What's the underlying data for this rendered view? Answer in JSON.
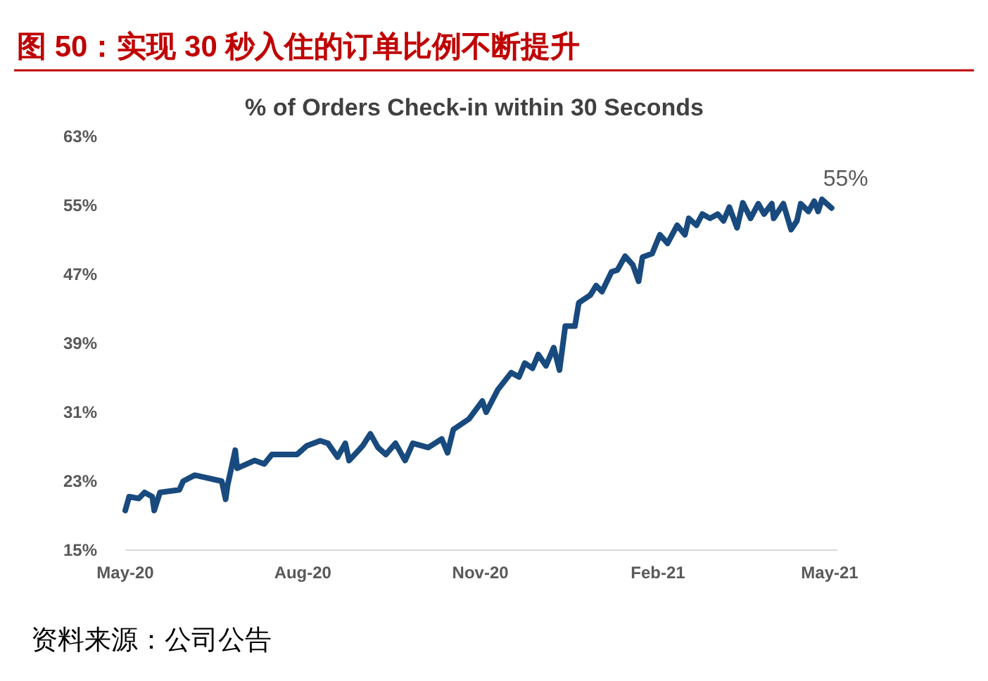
{
  "chart_data": {
    "type": "line",
    "title": "图 50：实现 30 秒入住的订单比例不断提升",
    "subtitle": "% of Orders Check-in within 30 Seconds",
    "x": [
      "2020-05-01",
      "2020-05-03",
      "2020-05-08",
      "2020-05-11",
      "2020-05-15",
      "2020-05-16",
      "2020-05-19",
      "2020-05-29",
      "2020-05-31",
      "2020-06-06",
      "2020-06-20",
      "2020-06-22",
      "2020-06-23",
      "2020-06-27",
      "2020-06-28",
      "2020-07-07",
      "2020-07-12",
      "2020-07-16",
      "2020-07-29",
      "2020-08-03",
      "2020-08-10",
      "2020-08-14",
      "2020-08-19",
      "2020-08-23",
      "2020-08-25",
      "2020-09-01",
      "2020-09-05",
      "2020-09-09",
      "2020-09-13",
      "2020-09-18",
      "2020-09-23",
      "2020-09-27",
      "2020-10-05",
      "2020-10-12",
      "2020-10-15",
      "2020-10-18",
      "2020-10-26",
      "2020-11-02",
      "2020-11-04",
      "2020-11-10",
      "2020-11-17",
      "2020-11-21",
      "2020-11-24",
      "2020-11-28",
      "2020-12-01",
      "2020-12-05",
      "2020-12-09",
      "2020-12-12",
      "2020-12-15",
      "2020-12-20",
      "2020-12-22",
      "2020-12-28",
      "2020-12-31",
      "2021-01-03",
      "2021-01-08",
      "2021-01-11",
      "2021-01-15",
      "2021-01-19",
      "2021-01-22",
      "2021-01-24",
      "2021-01-29",
      "2021-02-02",
      "2021-02-06",
      "2021-02-11",
      "2021-02-15",
      "2021-02-17",
      "2021-02-21",
      "2021-02-24",
      "2021-02-28",
      "2021-03-04",
      "2021-03-07",
      "2021-03-10",
      "2021-03-14",
      "2021-03-17",
      "2021-03-21",
      "2021-03-25",
      "2021-03-28",
      "2021-04-01",
      "2021-04-02",
      "2021-04-07",
      "2021-04-11",
      "2021-04-14",
      "2021-04-16",
      "2021-04-20",
      "2021-04-23",
      "2021-04-25",
      "2021-04-27",
      "2021-05-02"
    ],
    "series": [
      {
        "color": "#184a7e",
        "values": [
          19.6,
          21.2,
          21,
          21.7,
          21.2,
          19.6,
          21.7,
          22,
          23,
          23.7,
          23,
          20.9,
          22.5,
          26.6,
          24.5,
          25.4,
          25,
          26.1,
          26.1,
          27.1,
          27.7,
          27.4,
          25.8,
          27.4,
          25.4,
          27.1,
          28.5,
          26.9,
          26.1,
          27.4,
          25.4,
          27.4,
          26.9,
          27.9,
          26.3,
          29,
          30.2,
          32.3,
          31,
          33.6,
          35.6,
          35.1,
          36.7,
          36.1,
          37.7,
          36.4,
          38.5,
          35.9,
          41,
          41,
          43.7,
          44.6,
          45.7,
          45,
          47.3,
          47.5,
          49.1,
          48.1,
          46.2,
          49,
          49.4,
          51.6,
          50.6,
          52.7,
          51.6,
          53.5,
          52.7,
          54,
          53.5,
          54,
          53.2,
          54.8,
          52.4,
          55.3,
          53.5,
          55.2,
          54,
          55.2,
          53.5,
          55.2,
          52.2,
          53.2,
          55.2,
          54.3,
          55.5,
          54.3,
          55.7,
          54.7
        ]
      }
    ],
    "xlim": [
      "2020-05-01",
      "2021-05-05"
    ],
    "xticks": [
      {
        "value": "2020-05-01",
        "label": "May-20"
      },
      {
        "value": "2020-08-01",
        "label": "Aug-20"
      },
      {
        "value": "2020-11-01",
        "label": "Nov-20"
      },
      {
        "value": "2021-02-01",
        "label": "Feb-21"
      },
      {
        "value": "2021-05-01",
        "label": "May-21"
      }
    ],
    "ylim": [
      15,
      63
    ],
    "yticks": [
      {
        "value": 15,
        "label": "15%"
      },
      {
        "value": 23,
        "label": "23%"
      },
      {
        "value": 31,
        "label": "31%"
      },
      {
        "value": 39,
        "label": "39%"
      },
      {
        "value": 47,
        "label": "47%"
      },
      {
        "value": 55,
        "label": "55%"
      },
      {
        "value": 63,
        "label": "63%"
      }
    ],
    "grid": false,
    "marker": "none",
    "line_style": "solid",
    "annotations": [
      {
        "text": "55%",
        "x": "2021-05-02",
        "y": 54.7
      },
      "资料来源：公司公告"
    ]
  }
}
